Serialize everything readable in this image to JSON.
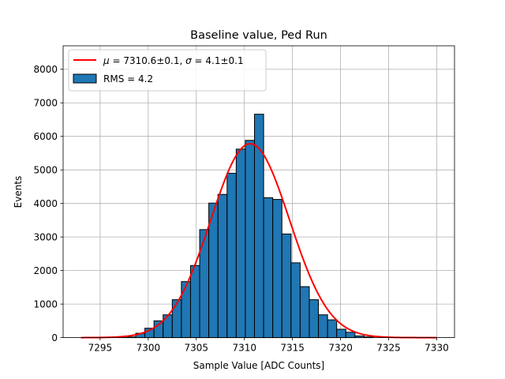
{
  "chart_data": {
    "type": "bar",
    "title": "Baseline value, Ped Run",
    "xlabel": "Sample Value [ADC Counts]",
    "ylabel": "Events",
    "xlim": [
      7291.15,
      7331.85
    ],
    "ylim": [
      0,
      8700
    ],
    "xticks": [
      7295,
      7300,
      7305,
      7310,
      7315,
      7320,
      7325,
      7330
    ],
    "yticks": [
      0,
      1000,
      2000,
      3000,
      4000,
      5000,
      6000,
      7000,
      8000
    ],
    "grid": true,
    "legend_position": "top-left",
    "legend": {
      "fit_label_mu_sym": "μ",
      "fit_label_mu_val": " = 7310.6±0.1, ",
      "fit_label_sigma_sym": "σ",
      "fit_label_sigma_val": " = 4.1±0.1",
      "hist_label": "RMS = 4.2"
    },
    "histogram": {
      "name": "RMS = 4.2",
      "color": "#1f77b4",
      "edge_color": "#000000",
      "bin_edges": [
        7293.0,
        7293.95,
        7294.9,
        7295.85,
        7296.8,
        7297.75,
        7298.7,
        7299.65,
        7300.6,
        7301.55,
        7302.5,
        7303.45,
        7304.4,
        7305.35,
        7306.3,
        7307.25,
        7308.2,
        7309.15,
        7310.1,
        7311.05,
        7312.0,
        7312.95,
        7313.9,
        7314.85,
        7315.8,
        7316.75,
        7317.7,
        7318.65,
        7319.6,
        7320.55,
        7321.5,
        7322.45,
        7323.4,
        7324.35,
        7325.3,
        7326.25,
        7327.2,
        7328.15,
        7329.1,
        7330.05
      ],
      "counts": [
        0,
        0,
        0,
        0,
        5,
        20,
        130,
        280,
        500,
        680,
        1130,
        1670,
        2150,
        3220,
        4010,
        4270,
        4900,
        5620,
        5880,
        6660,
        4170,
        4120,
        3090,
        2230,
        1520,
        1130,
        680,
        530,
        250,
        160,
        50,
        20,
        0,
        0,
        0,
        0,
        0,
        0,
        0
      ]
    },
    "fit": {
      "name": "μ = 7310.6±0.1, σ = 4.1±0.1",
      "color": "#ff0000",
      "mu": 7310.6,
      "sigma": 4.1,
      "amplitude": 5780,
      "x_range": [
        7293,
        7330
      ]
    }
  }
}
